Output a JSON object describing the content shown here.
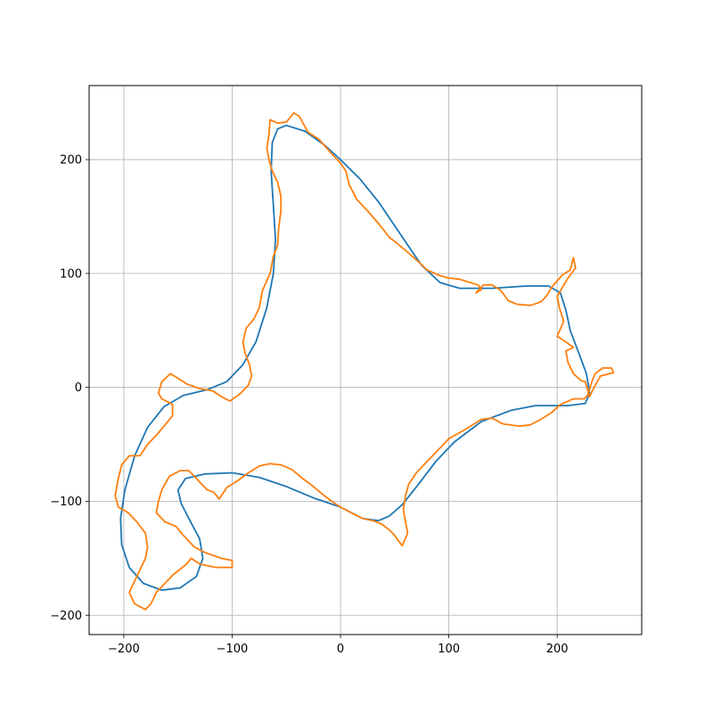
{
  "chart_data": {
    "type": "line",
    "title": "",
    "xlabel": "",
    "ylabel": "",
    "xlim": [
      -232,
      278
    ],
    "ylim": [
      -217,
      265
    ],
    "grid": true,
    "legend": "none",
    "x_ticks": [
      -200,
      -100,
      0,
      100,
      200
    ],
    "y_ticks": [
      -200,
      -100,
      0,
      100,
      200
    ],
    "x_tick_labels": [
      "−200",
      "−100",
      "0",
      "100",
      "200"
    ],
    "y_tick_labels": [
      "−200",
      "−100",
      "0",
      "100",
      "200"
    ],
    "colors": {
      "series_1": "#1f77b4",
      "series_2": "#ff7f0e",
      "grid": "#b0b0b0",
      "axes": "#000000"
    },
    "series": [
      {
        "color": "#1f77b4",
        "closed": true,
        "points": [
          [
            -50,
            230
          ],
          [
            -33,
            225
          ],
          [
            -15,
            213
          ],
          [
            0,
            200
          ],
          [
            18,
            183
          ],
          [
            35,
            163
          ],
          [
            50,
            142
          ],
          [
            62,
            125
          ],
          [
            75,
            107
          ],
          [
            92,
            92
          ],
          [
            110,
            87
          ],
          [
            140,
            87
          ],
          [
            172,
            89
          ],
          [
            192,
            89
          ],
          [
            203,
            83
          ],
          [
            208,
            68
          ],
          [
            212,
            50
          ],
          [
            220,
            30
          ],
          [
            227,
            12
          ],
          [
            230,
            -5
          ],
          [
            226,
            -14
          ],
          [
            210,
            -16
          ],
          [
            180,
            -16
          ],
          [
            158,
            -20
          ],
          [
            130,
            -30
          ],
          [
            105,
            -48
          ],
          [
            88,
            -65
          ],
          [
            72,
            -85
          ],
          [
            57,
            -103
          ],
          [
            45,
            -113
          ],
          [
            35,
            -117
          ],
          [
            20,
            -115
          ],
          [
            0,
            -105
          ],
          [
            -25,
            -97
          ],
          [
            -50,
            -87
          ],
          [
            -75,
            -79
          ],
          [
            -100,
            -75
          ],
          [
            -125,
            -76
          ],
          [
            -143,
            -80
          ],
          [
            -150,
            -90
          ],
          [
            -147,
            -102
          ],
          [
            -140,
            -115
          ],
          [
            -130,
            -133
          ],
          [
            -127,
            -150
          ],
          [
            -133,
            -166
          ],
          [
            -148,
            -176
          ],
          [
            -165,
            -178
          ],
          [
            -182,
            -172
          ],
          [
            -195,
            -158
          ],
          [
            -202,
            -138
          ],
          [
            -203,
            -115
          ],
          [
            -199,
            -90
          ],
          [
            -190,
            -60
          ],
          [
            -178,
            -35
          ],
          [
            -163,
            -17
          ],
          [
            -145,
            -7
          ],
          [
            -123,
            -2
          ],
          [
            -105,
            5
          ],
          [
            -90,
            20
          ],
          [
            -78,
            40
          ],
          [
            -68,
            70
          ],
          [
            -62,
            100
          ],
          [
            -60,
            130
          ],
          [
            -62,
            160
          ],
          [
            -64,
            190
          ],
          [
            -63,
            215
          ],
          [
            -58,
            227
          ],
          [
            -50,
            230
          ]
        ]
      },
      {
        "color": "#ff7f0e",
        "closed": true,
        "points": [
          [
            -65,
            235
          ],
          [
            -58,
            232
          ],
          [
            -50,
            233
          ],
          [
            -43,
            241
          ],
          [
            -38,
            238
          ],
          [
            -30,
            224
          ],
          [
            -20,
            218
          ],
          [
            -8,
            205
          ],
          [
            0,
            197
          ],
          [
            5,
            190
          ],
          [
            8,
            178
          ],
          [
            15,
            165
          ],
          [
            25,
            155
          ],
          [
            35,
            144
          ],
          [
            45,
            132
          ],
          [
            58,
            122
          ],
          [
            70,
            112
          ],
          [
            80,
            103
          ],
          [
            92,
            98
          ],
          [
            100,
            96
          ],
          [
            110,
            95
          ],
          [
            120,
            92
          ],
          [
            127,
            90
          ],
          [
            130,
            86
          ],
          [
            125,
            83
          ],
          [
            132,
            90
          ],
          [
            140,
            90
          ],
          [
            148,
            85
          ],
          [
            155,
            76
          ],
          [
            163,
            73
          ],
          [
            175,
            72
          ],
          [
            185,
            75
          ],
          [
            190,
            80
          ],
          [
            195,
            88
          ],
          [
            205,
            99
          ],
          [
            212,
            103
          ],
          [
            215,
            114
          ],
          [
            217,
            105
          ],
          [
            210,
            96
          ],
          [
            205,
            88
          ],
          [
            200,
            80
          ],
          [
            202,
            70
          ],
          [
            206,
            58
          ],
          [
            200,
            45
          ],
          [
            208,
            40
          ],
          [
            215,
            35
          ],
          [
            208,
            32
          ],
          [
            210,
            22
          ],
          [
            215,
            12
          ],
          [
            222,
            6
          ],
          [
            226,
            5
          ],
          [
            228,
            -2
          ],
          [
            230,
            -8
          ],
          [
            234,
            0
          ],
          [
            240,
            10
          ],
          [
            252,
            13
          ],
          [
            250,
            17
          ],
          [
            242,
            17
          ],
          [
            235,
            12
          ],
          [
            232,
            5
          ],
          [
            228,
            -7
          ],
          [
            225,
            -10
          ],
          [
            215,
            -10
          ],
          [
            203,
            -15
          ],
          [
            195,
            -22
          ],
          [
            185,
            -28
          ],
          [
            175,
            -33
          ],
          [
            165,
            -34
          ],
          [
            150,
            -32
          ],
          [
            140,
            -27
          ],
          [
            130,
            -28
          ],
          [
            115,
            -37
          ],
          [
            100,
            -45
          ],
          [
            90,
            -55
          ],
          [
            80,
            -65
          ],
          [
            70,
            -75
          ],
          [
            63,
            -85
          ],
          [
            60,
            -95
          ],
          [
            58,
            -107
          ],
          [
            60,
            -118
          ],
          [
            62,
            -128
          ],
          [
            57,
            -139
          ],
          [
            50,
            -130
          ],
          [
            45,
            -125
          ],
          [
            38,
            -120
          ],
          [
            30,
            -117
          ],
          [
            20,
            -115
          ],
          [
            10,
            -110
          ],
          [
            0,
            -105
          ],
          [
            -8,
            -100
          ],
          [
            -15,
            -95
          ],
          [
            -25,
            -87
          ],
          [
            -35,
            -80
          ],
          [
            -45,
            -72
          ],
          [
            -55,
            -68
          ],
          [
            -65,
            -67
          ],
          [
            -75,
            -69
          ],
          [
            -85,
            -75
          ],
          [
            -95,
            -82
          ],
          [
            -105,
            -88
          ],
          [
            -112,
            -98
          ],
          [
            -117,
            -92
          ],
          [
            -123,
            -90
          ],
          [
            -130,
            -83
          ],
          [
            -140,
            -73
          ],
          [
            -148,
            -73
          ],
          [
            -158,
            -78
          ],
          [
            -165,
            -90
          ],
          [
            -168,
            -100
          ],
          [
            -170,
            -110
          ],
          [
            -162,
            -118
          ],
          [
            -152,
            -122
          ],
          [
            -145,
            -130
          ],
          [
            -135,
            -140
          ],
          [
            -125,
            -145
          ],
          [
            -110,
            -150
          ],
          [
            -100,
            -152
          ],
          [
            -100,
            -158
          ],
          [
            -115,
            -158
          ],
          [
            -130,
            -155
          ],
          [
            -138,
            -150
          ],
          [
            -142,
            -155
          ],
          [
            -155,
            -165
          ],
          [
            -170,
            -180
          ],
          [
            -175,
            -190
          ],
          [
            -180,
            -195
          ],
          [
            -190,
            -190
          ],
          [
            -195,
            -180
          ],
          [
            -190,
            -170
          ],
          [
            -185,
            -160
          ],
          [
            -180,
            -150
          ],
          [
            -178,
            -140
          ],
          [
            -180,
            -128
          ],
          [
            -188,
            -118
          ],
          [
            -196,
            -110
          ],
          [
            -205,
            -105
          ],
          [
            -208,
            -95
          ],
          [
            -205,
            -80
          ],
          [
            -202,
            -68
          ],
          [
            -195,
            -60
          ],
          [
            -185,
            -60
          ],
          [
            -178,
            -50
          ],
          [
            -170,
            -42
          ],
          [
            -162,
            -33
          ],
          [
            -155,
            -25
          ],
          [
            -155,
            -15
          ],
          [
            -165,
            -10
          ],
          [
            -168,
            -5
          ],
          [
            -165,
            5
          ],
          [
            -157,
            12
          ],
          [
            -150,
            8
          ],
          [
            -142,
            3
          ],
          [
            -130,
            -1
          ],
          [
            -118,
            -3
          ],
          [
            -110,
            -8
          ],
          [
            -102,
            -12
          ],
          [
            -92,
            -5
          ],
          [
            -85,
            2
          ],
          [
            -82,
            10
          ],
          [
            -84,
            20
          ],
          [
            -88,
            30
          ],
          [
            -90,
            40
          ],
          [
            -87,
            52
          ],
          [
            -80,
            60
          ],
          [
            -75,
            70
          ],
          [
            -72,
            85
          ],
          [
            -65,
            100
          ],
          [
            -62,
            115
          ],
          [
            -58,
            125
          ],
          [
            -57,
            140
          ],
          [
            -55,
            155
          ],
          [
            -55,
            168
          ],
          [
            -58,
            180
          ],
          [
            -63,
            190
          ],
          [
            -66,
            200
          ],
          [
            -68,
            210
          ],
          [
            -66,
            222
          ],
          [
            -65,
            235
          ]
        ]
      }
    ]
  }
}
